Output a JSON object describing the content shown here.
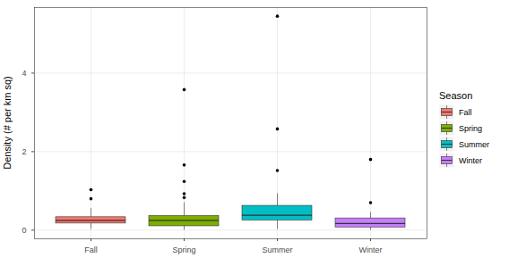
{
  "chart_data": {
    "type": "box",
    "y_label": "Density (# per km sq)",
    "categories": [
      "Fall",
      "Spring",
      "Summer",
      "Winter"
    ],
    "colors": [
      "#F8766D",
      "#7CAE00",
      "#00BFC4",
      "#C77CFF"
    ],
    "whisker_low": [
      0.02,
      0.0,
      0.02,
      0.0
    ],
    "q1": [
      0.17,
      0.1,
      0.25,
      0.07
    ],
    "median": [
      0.25,
      0.25,
      0.38,
      0.17
    ],
    "q3": [
      0.33,
      0.36,
      0.62,
      0.3
    ],
    "whisker_high": [
      0.55,
      0.7,
      0.93,
      0.45
    ],
    "outliers": [
      [
        1.03,
        0.8
      ],
      [
        3.58,
        1.66,
        1.24,
        0.93,
        0.83
      ],
      [
        5.45,
        2.58,
        1.52
      ],
      [
        1.8,
        0.7
      ]
    ],
    "ylim": [
      -0.22,
      5.67
    ],
    "yticks": [
      0,
      2,
      4
    ],
    "grid": true,
    "legend": "right",
    "legend_title": "Season"
  }
}
